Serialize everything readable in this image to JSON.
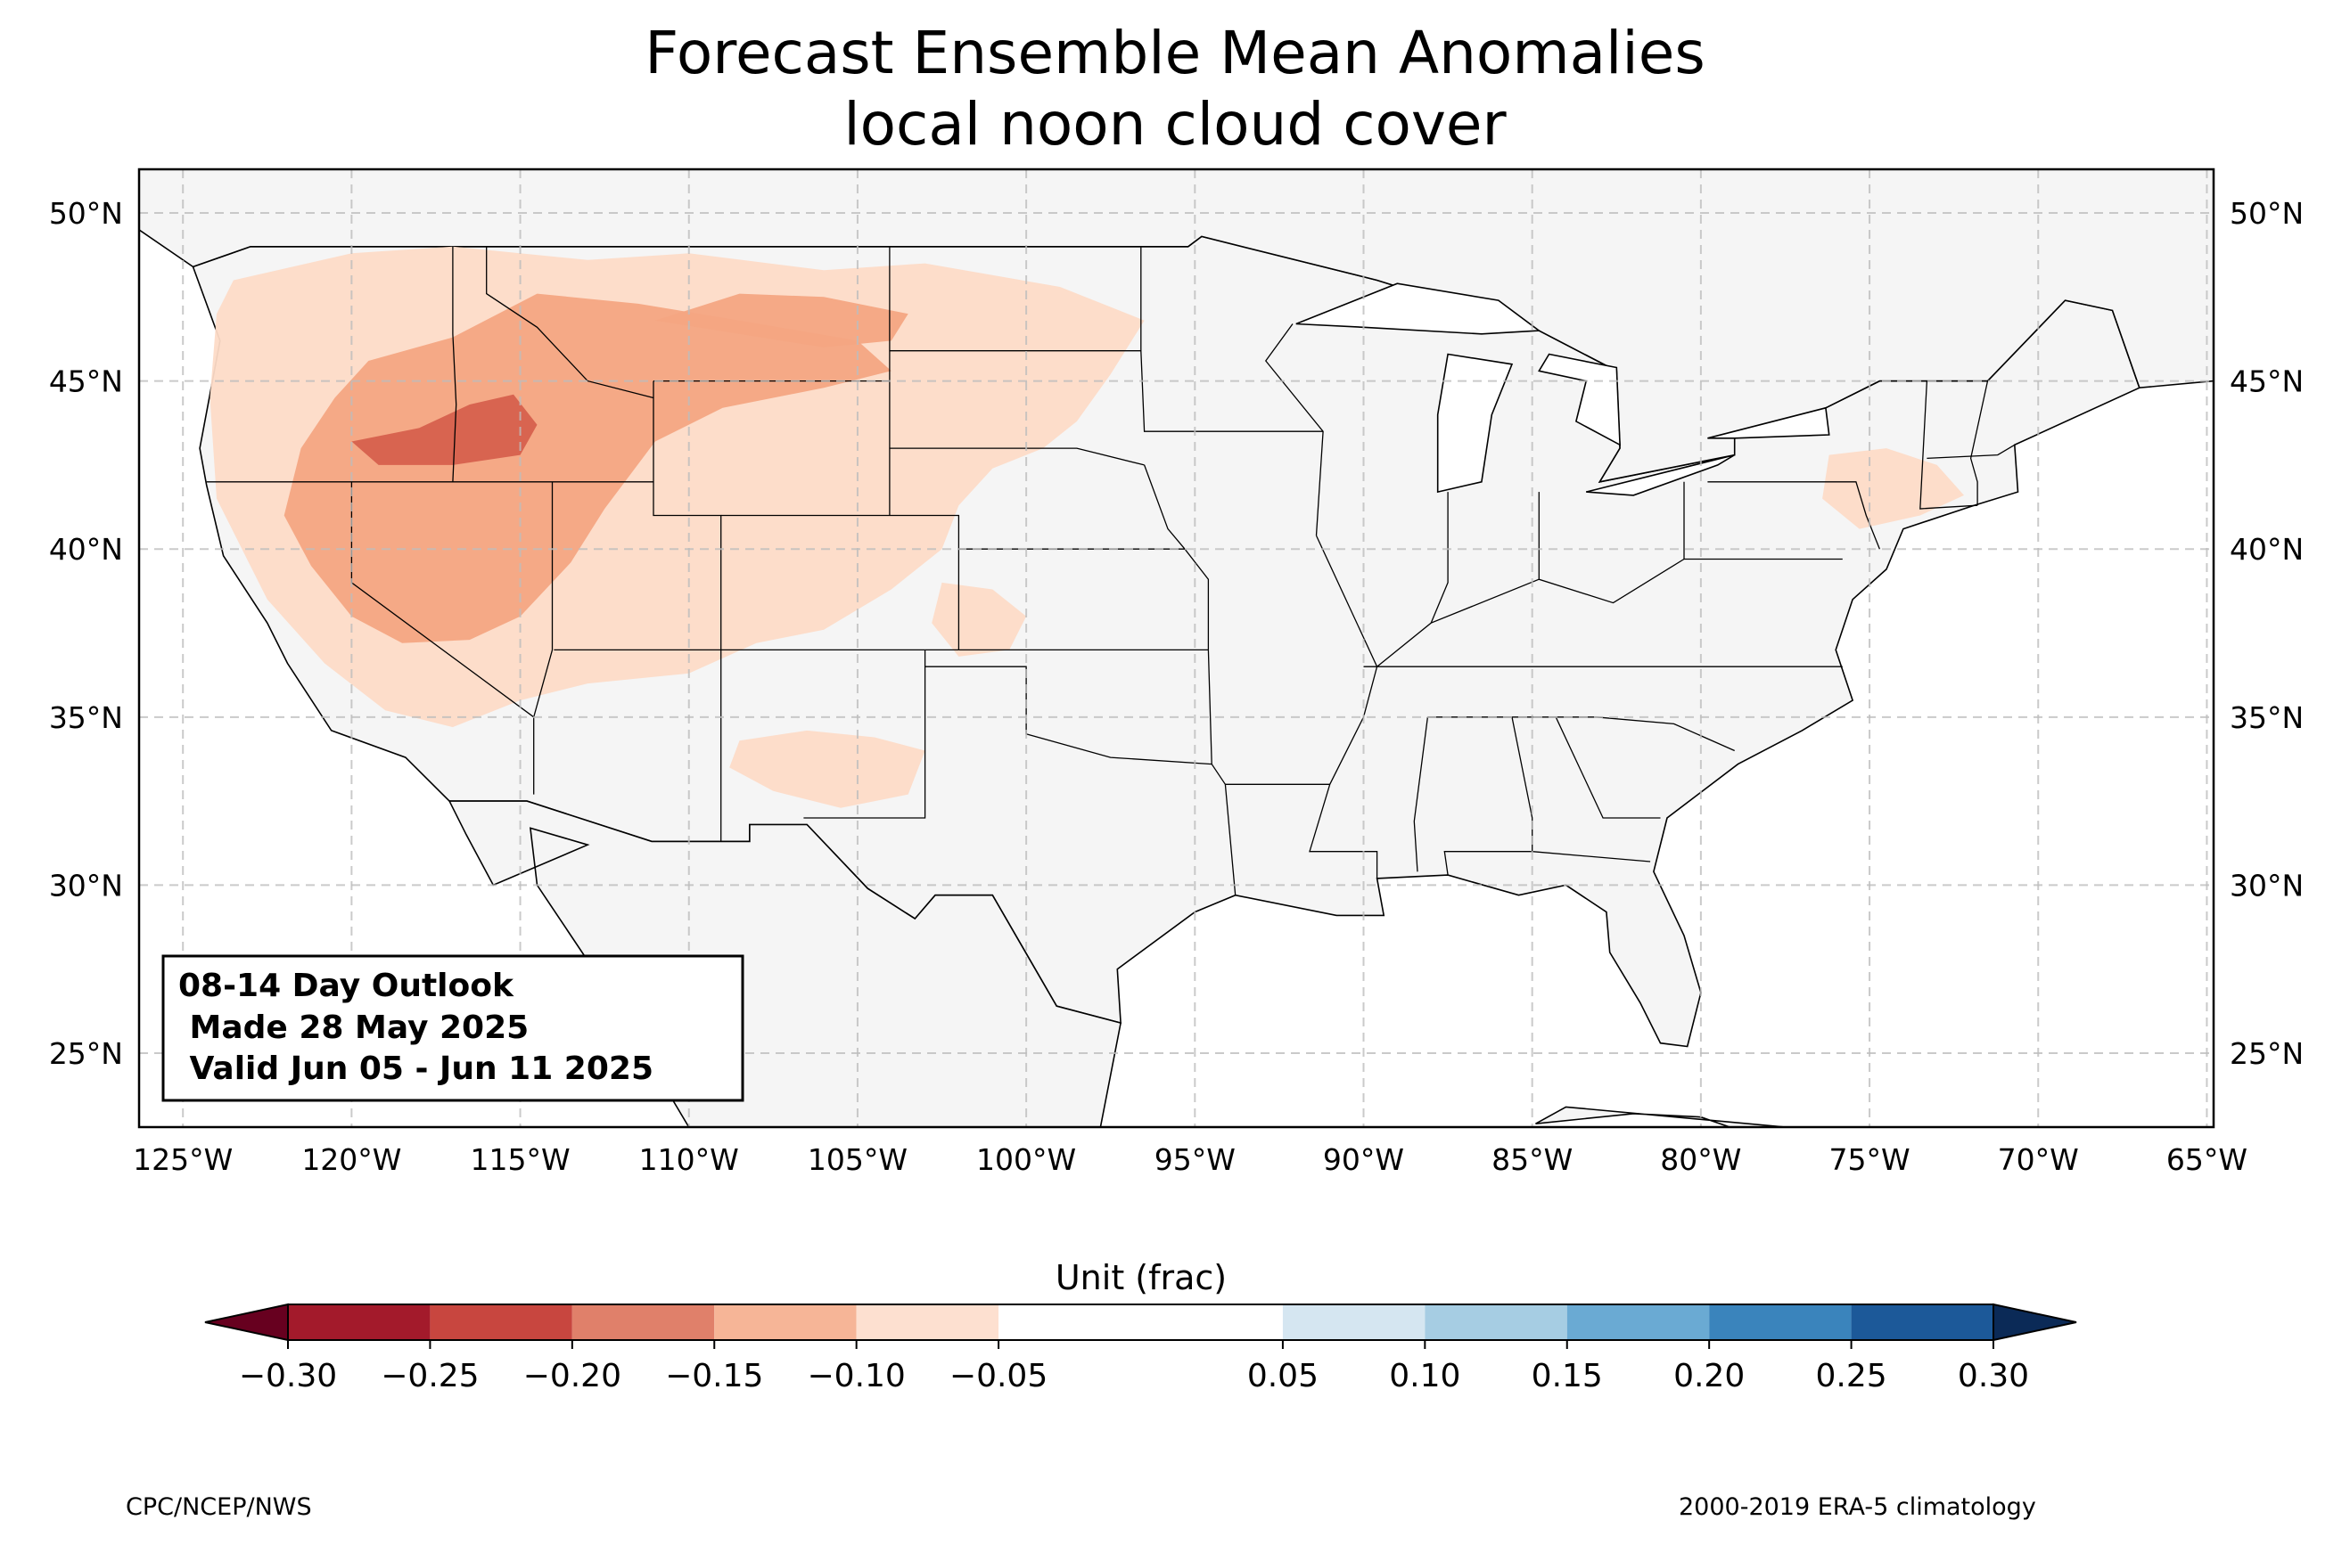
{
  "title": {
    "line1": "Forecast Ensemble Mean Anomalies",
    "line2": "local noon cloud cover"
  },
  "map": {
    "extent": {
      "lon_min": -126.3,
      "lon_max": -64.8,
      "lat_min": 22.8,
      "lat_max": 51.3
    },
    "lon_ticks": [
      {
        "value": -125,
        "label": "125°W"
      },
      {
        "value": -120,
        "label": "120°W"
      },
      {
        "value": -115,
        "label": "115°W"
      },
      {
        "value": -110,
        "label": "110°W"
      },
      {
        "value": -105,
        "label": "105°W"
      },
      {
        "value": -100,
        "label": "100°W"
      },
      {
        "value": -95,
        "label": "95°W"
      },
      {
        "value": -90,
        "label": "90°W"
      },
      {
        "value": -85,
        "label": "85°W"
      },
      {
        "value": -80,
        "label": "80°W"
      },
      {
        "value": -75,
        "label": "75°W"
      },
      {
        "value": -70,
        "label": "70°W"
      },
      {
        "value": -65,
        "label": "65°W"
      }
    ],
    "lat_ticks": [
      {
        "value": 25,
        "label": "25°N"
      },
      {
        "value": 30,
        "label": "30°N"
      },
      {
        "value": 35,
        "label": "35°N"
      },
      {
        "value": 40,
        "label": "40°N"
      },
      {
        "value": 45,
        "label": "45°N"
      },
      {
        "value": 50,
        "label": "50°N"
      }
    ],
    "grid": true,
    "land_color": "#f5f5f5",
    "anomaly_regions": [
      {
        "level": "-0.10",
        "color": "#fddbc7",
        "points": [
          [
            -123.5,
            48
          ],
          [
            -120,
            48.8
          ],
          [
            -117,
            49
          ],
          [
            -113,
            48.6
          ],
          [
            -110,
            48.8
          ],
          [
            -106,
            48.3
          ],
          [
            -103,
            48.5
          ],
          [
            -99,
            47.8
          ],
          [
            -96.5,
            46.8
          ],
          [
            -97.5,
            45.2
          ],
          [
            -98.5,
            43.8
          ],
          [
            -99.5,
            43
          ],
          [
            -101,
            42.4
          ],
          [
            -102,
            41.3
          ],
          [
            -102.5,
            40
          ],
          [
            -104,
            38.8
          ],
          [
            -106,
            37.6
          ],
          [
            -108,
            37.2
          ],
          [
            -110,
            36.3
          ],
          [
            -113,
            36
          ],
          [
            -115,
            35.5
          ],
          [
            -117,
            34.7
          ],
          [
            -119,
            35.2
          ],
          [
            -120.8,
            36.6
          ],
          [
            -122.5,
            38.5
          ],
          [
            -124,
            41.5
          ],
          [
            -124.2,
            44.5
          ],
          [
            -124,
            47
          ]
        ]
      },
      {
        "level": "-0.10",
        "color": "#fddbc7",
        "points": [
          [
            -102.5,
            39
          ],
          [
            -101,
            38.8
          ],
          [
            -100,
            38
          ],
          [
            -100.5,
            37
          ],
          [
            -102,
            36.8
          ],
          [
            -102.8,
            37.8
          ]
        ]
      },
      {
        "level": "-0.10",
        "color": "#fddbc7",
        "points": [
          [
            -108.5,
            34.3
          ],
          [
            -106.5,
            34.6
          ],
          [
            -104.5,
            34.4
          ],
          [
            -103,
            34
          ],
          [
            -103.5,
            32.7
          ],
          [
            -105.5,
            32.3
          ],
          [
            -107.5,
            32.8
          ],
          [
            -108.8,
            33.5
          ]
        ]
      },
      {
        "level": "-0.10",
        "color": "#fddbc7",
        "points": [
          [
            -76.2,
            42.8
          ],
          [
            -74.5,
            43
          ],
          [
            -73,
            42.5
          ],
          [
            -72.2,
            41.6
          ],
          [
            -73.5,
            41
          ],
          [
            -75.3,
            40.6
          ],
          [
            -76.4,
            41.5
          ]
        ]
      },
      {
        "level": "-0.15",
        "color": "#f4a582",
        "points": [
          [
            -119.5,
            45.6
          ],
          [
            -117,
            46.3
          ],
          [
            -114.5,
            47.6
          ],
          [
            -111.5,
            47.3
          ],
          [
            -108.5,
            46.8
          ],
          [
            -105,
            46.2
          ],
          [
            -104,
            45.3
          ],
          [
            -106,
            44.8
          ],
          [
            -109,
            44.2
          ],
          [
            -111,
            43.2
          ],
          [
            -112.5,
            41.2
          ],
          [
            -113.5,
            39.6
          ],
          [
            -115,
            38
          ],
          [
            -116.5,
            37.3
          ],
          [
            -118.5,
            37.2
          ],
          [
            -120,
            38
          ],
          [
            -121.2,
            39.5
          ],
          [
            -122,
            41
          ],
          [
            -121.5,
            43
          ],
          [
            -120.5,
            44.5
          ]
        ]
      },
      {
        "level": "-0.15",
        "color": "#f4a582",
        "points": [
          [
            -111,
            46.8
          ],
          [
            -108.5,
            47.6
          ],
          [
            -106,
            47.5
          ],
          [
            -103.5,
            47
          ],
          [
            -104,
            46.2
          ],
          [
            -106,
            46
          ]
        ]
      },
      {
        "level": "-0.20",
        "color": "#d6604d",
        "points": [
          [
            -120,
            43.2
          ],
          [
            -118,
            43.6
          ],
          [
            -116.5,
            44.3
          ],
          [
            -115.2,
            44.6
          ],
          [
            -114.5,
            43.7
          ],
          [
            -115,
            42.8
          ],
          [
            -117,
            42.5
          ],
          [
            -119.2,
            42.5
          ]
        ]
      }
    ],
    "annotation": {
      "line1": "08-14 Day Outlook",
      "line2": " Made 28 May 2025",
      "line3": " Valid Jun 05 - Jun 11 2025"
    }
  },
  "colorbar": {
    "label": "Unit (frac)",
    "bins": [
      {
        "from": -0.3,
        "to": -0.25,
        "color": "#a31a2b"
      },
      {
        "from": -0.25,
        "to": -0.2,
        "color": "#c8463f"
      },
      {
        "from": -0.2,
        "to": -0.15,
        "color": "#e0806a"
      },
      {
        "from": -0.15,
        "to": -0.1,
        "color": "#f6b597"
      },
      {
        "from": -0.1,
        "to": -0.05,
        "color": "#fde0d0"
      },
      {
        "from": -0.05,
        "to": 0.05,
        "color": "#ffffff"
      },
      {
        "from": 0.05,
        "to": 0.1,
        "color": "#d5e6f1"
      },
      {
        "from": 0.1,
        "to": 0.15,
        "color": "#a6cde3"
      },
      {
        "from": 0.15,
        "to": 0.2,
        "color": "#6aaad3"
      },
      {
        "from": 0.2,
        "to": 0.25,
        "color": "#3a84bc"
      },
      {
        "from": 0.25,
        "to": 0.3,
        "color": "#1c5999"
      }
    ],
    "under_color": "#67001f",
    "over_color": "#0b2a57",
    "ticks": [
      {
        "value": -0.3,
        "label": "−0.30"
      },
      {
        "value": -0.25,
        "label": "−0.25"
      },
      {
        "value": -0.2,
        "label": "−0.20"
      },
      {
        "value": -0.15,
        "label": "−0.15"
      },
      {
        "value": -0.1,
        "label": "−0.10"
      },
      {
        "value": -0.05,
        "label": "−0.05"
      },
      {
        "value": 0.05,
        "label": "0.05"
      },
      {
        "value": 0.1,
        "label": "0.10"
      },
      {
        "value": 0.15,
        "label": "0.15"
      },
      {
        "value": 0.2,
        "label": "0.20"
      },
      {
        "value": 0.25,
        "label": "0.25"
      },
      {
        "value": 0.3,
        "label": "0.30"
      }
    ]
  },
  "footer": {
    "left": "CPC/NCEP/NWS",
    "right": "2000-2019 ERA-5 climatology"
  }
}
